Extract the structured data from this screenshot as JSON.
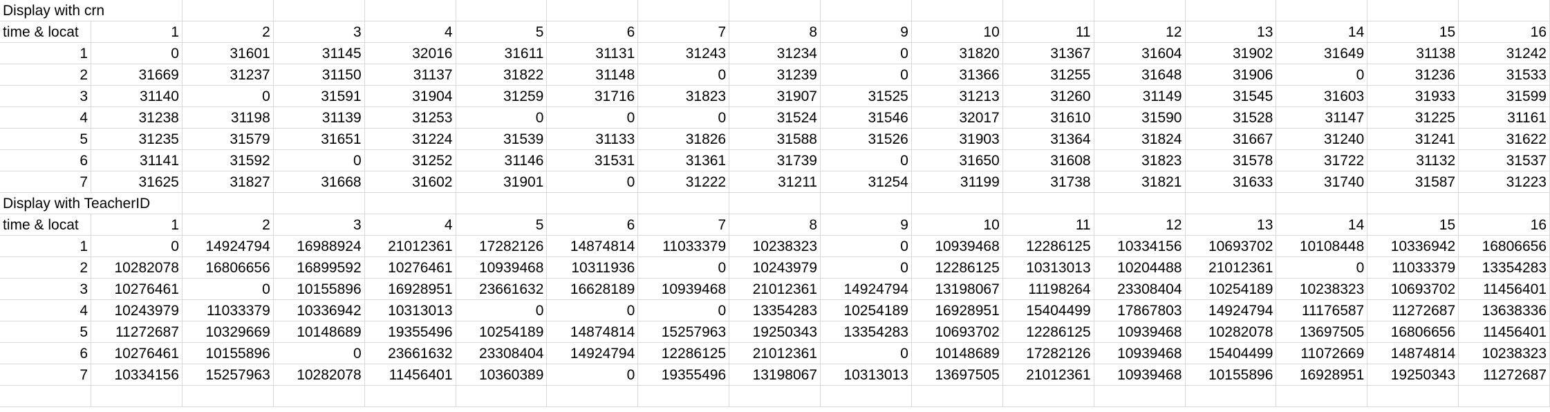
{
  "sections": [
    {
      "title": "Display with crn",
      "corner_label": "time & locat",
      "columns": [
        "1",
        "2",
        "3",
        "4",
        "5",
        "6",
        "7",
        "8",
        "9",
        "10",
        "11",
        "12",
        "13",
        "14",
        "15",
        "16"
      ],
      "rows": [
        {
          "label": "1",
          "cells": [
            "0",
            "31601",
            "31145",
            "32016",
            "31611",
            "31131",
            "31243",
            "31234",
            "0",
            "31820",
            "31367",
            "31604",
            "31902",
            "31649",
            "31138",
            "31242"
          ]
        },
        {
          "label": "2",
          "cells": [
            "31669",
            "31237",
            "31150",
            "31137",
            "31822",
            "31148",
            "0",
            "31239",
            "0",
            "31366",
            "31255",
            "31648",
            "31906",
            "0",
            "31236",
            "31533"
          ]
        },
        {
          "label": "3",
          "cells": [
            "31140",
            "0",
            "31591",
            "31904",
            "31259",
            "31716",
            "31823",
            "31907",
            "31525",
            "31213",
            "31260",
            "31149",
            "31545",
            "31603",
            "31933",
            "31599"
          ]
        },
        {
          "label": "4",
          "cells": [
            "31238",
            "31198",
            "31139",
            "31253",
            "0",
            "0",
            "0",
            "31524",
            "31546",
            "32017",
            "31610",
            "31590",
            "31528",
            "31147",
            "31225",
            "31161"
          ]
        },
        {
          "label": "5",
          "cells": [
            "31235",
            "31579",
            "31651",
            "31224",
            "31539",
            "31133",
            "31826",
            "31588",
            "31526",
            "31903",
            "31364",
            "31824",
            "31667",
            "31240",
            "31241",
            "31622"
          ]
        },
        {
          "label": "6",
          "cells": [
            "31141",
            "31592",
            "0",
            "31252",
            "31146",
            "31531",
            "31361",
            "31739",
            "0",
            "31650",
            "31608",
            "31823",
            "31578",
            "31722",
            "31132",
            "31537"
          ]
        },
        {
          "label": "7",
          "cells": [
            "31625",
            "31827",
            "31668",
            "31602",
            "31901",
            "0",
            "31222",
            "31211",
            "31254",
            "31199",
            "31738",
            "31821",
            "31633",
            "31740",
            "31587",
            "31223"
          ]
        }
      ]
    },
    {
      "title": "Display with TeacherID",
      "corner_label": "time & locat",
      "columns": [
        "1",
        "2",
        "3",
        "4",
        "5",
        "6",
        "7",
        "8",
        "9",
        "10",
        "11",
        "12",
        "13",
        "14",
        "15",
        "16"
      ],
      "rows": [
        {
          "label": "1",
          "cells": [
            "0",
            "14924794",
            "16988924",
            "21012361",
            "17282126",
            "14874814",
            "11033379",
            "10238323",
            "0",
            "10939468",
            "12286125",
            "10334156",
            "10693702",
            "10108448",
            "10336942",
            "16806656"
          ]
        },
        {
          "label": "2",
          "cells": [
            "10282078",
            "16806656",
            "16899592",
            "10276461",
            "10939468",
            "10311936",
            "0",
            "10243979",
            "0",
            "12286125",
            "10313013",
            "10204488",
            "21012361",
            "0",
            "11033379",
            "13354283"
          ]
        },
        {
          "label": "3",
          "cells": [
            "10276461",
            "0",
            "10155896",
            "16928951",
            "23661632",
            "16628189",
            "10939468",
            "21012361",
            "14924794",
            "13198067",
            "11198264",
            "23308404",
            "10254189",
            "10238323",
            "10693702",
            "11456401"
          ]
        },
        {
          "label": "4",
          "cells": [
            "10243979",
            "11033379",
            "10336942",
            "10313013",
            "0",
            "0",
            "0",
            "13354283",
            "10254189",
            "16928951",
            "15404499",
            "17867803",
            "14924794",
            "11176587",
            "11272687",
            "13638336"
          ]
        },
        {
          "label": "5",
          "cells": [
            "11272687",
            "10329669",
            "10148689",
            "19355496",
            "10254189",
            "14874814",
            "15257963",
            "19250343",
            "13354283",
            "10693702",
            "12286125",
            "10939468",
            "10282078",
            "13697505",
            "16806656",
            "11456401"
          ]
        },
        {
          "label": "6",
          "cells": [
            "10276461",
            "10155896",
            "0",
            "23661632",
            "23308404",
            "14924794",
            "12286125",
            "21012361",
            "0",
            "10148689",
            "17282126",
            "10939468",
            "15404499",
            "11072669",
            "14874814",
            "10238323"
          ]
        },
        {
          "label": "7",
          "cells": [
            "10334156",
            "15257963",
            "10282078",
            "11456401",
            "10360389",
            "0",
            "19355496",
            "13198067",
            "10313013",
            "13697505",
            "21012361",
            "10939468",
            "10155896",
            "16928951",
            "19250343",
            "11272687"
          ]
        }
      ]
    }
  ]
}
